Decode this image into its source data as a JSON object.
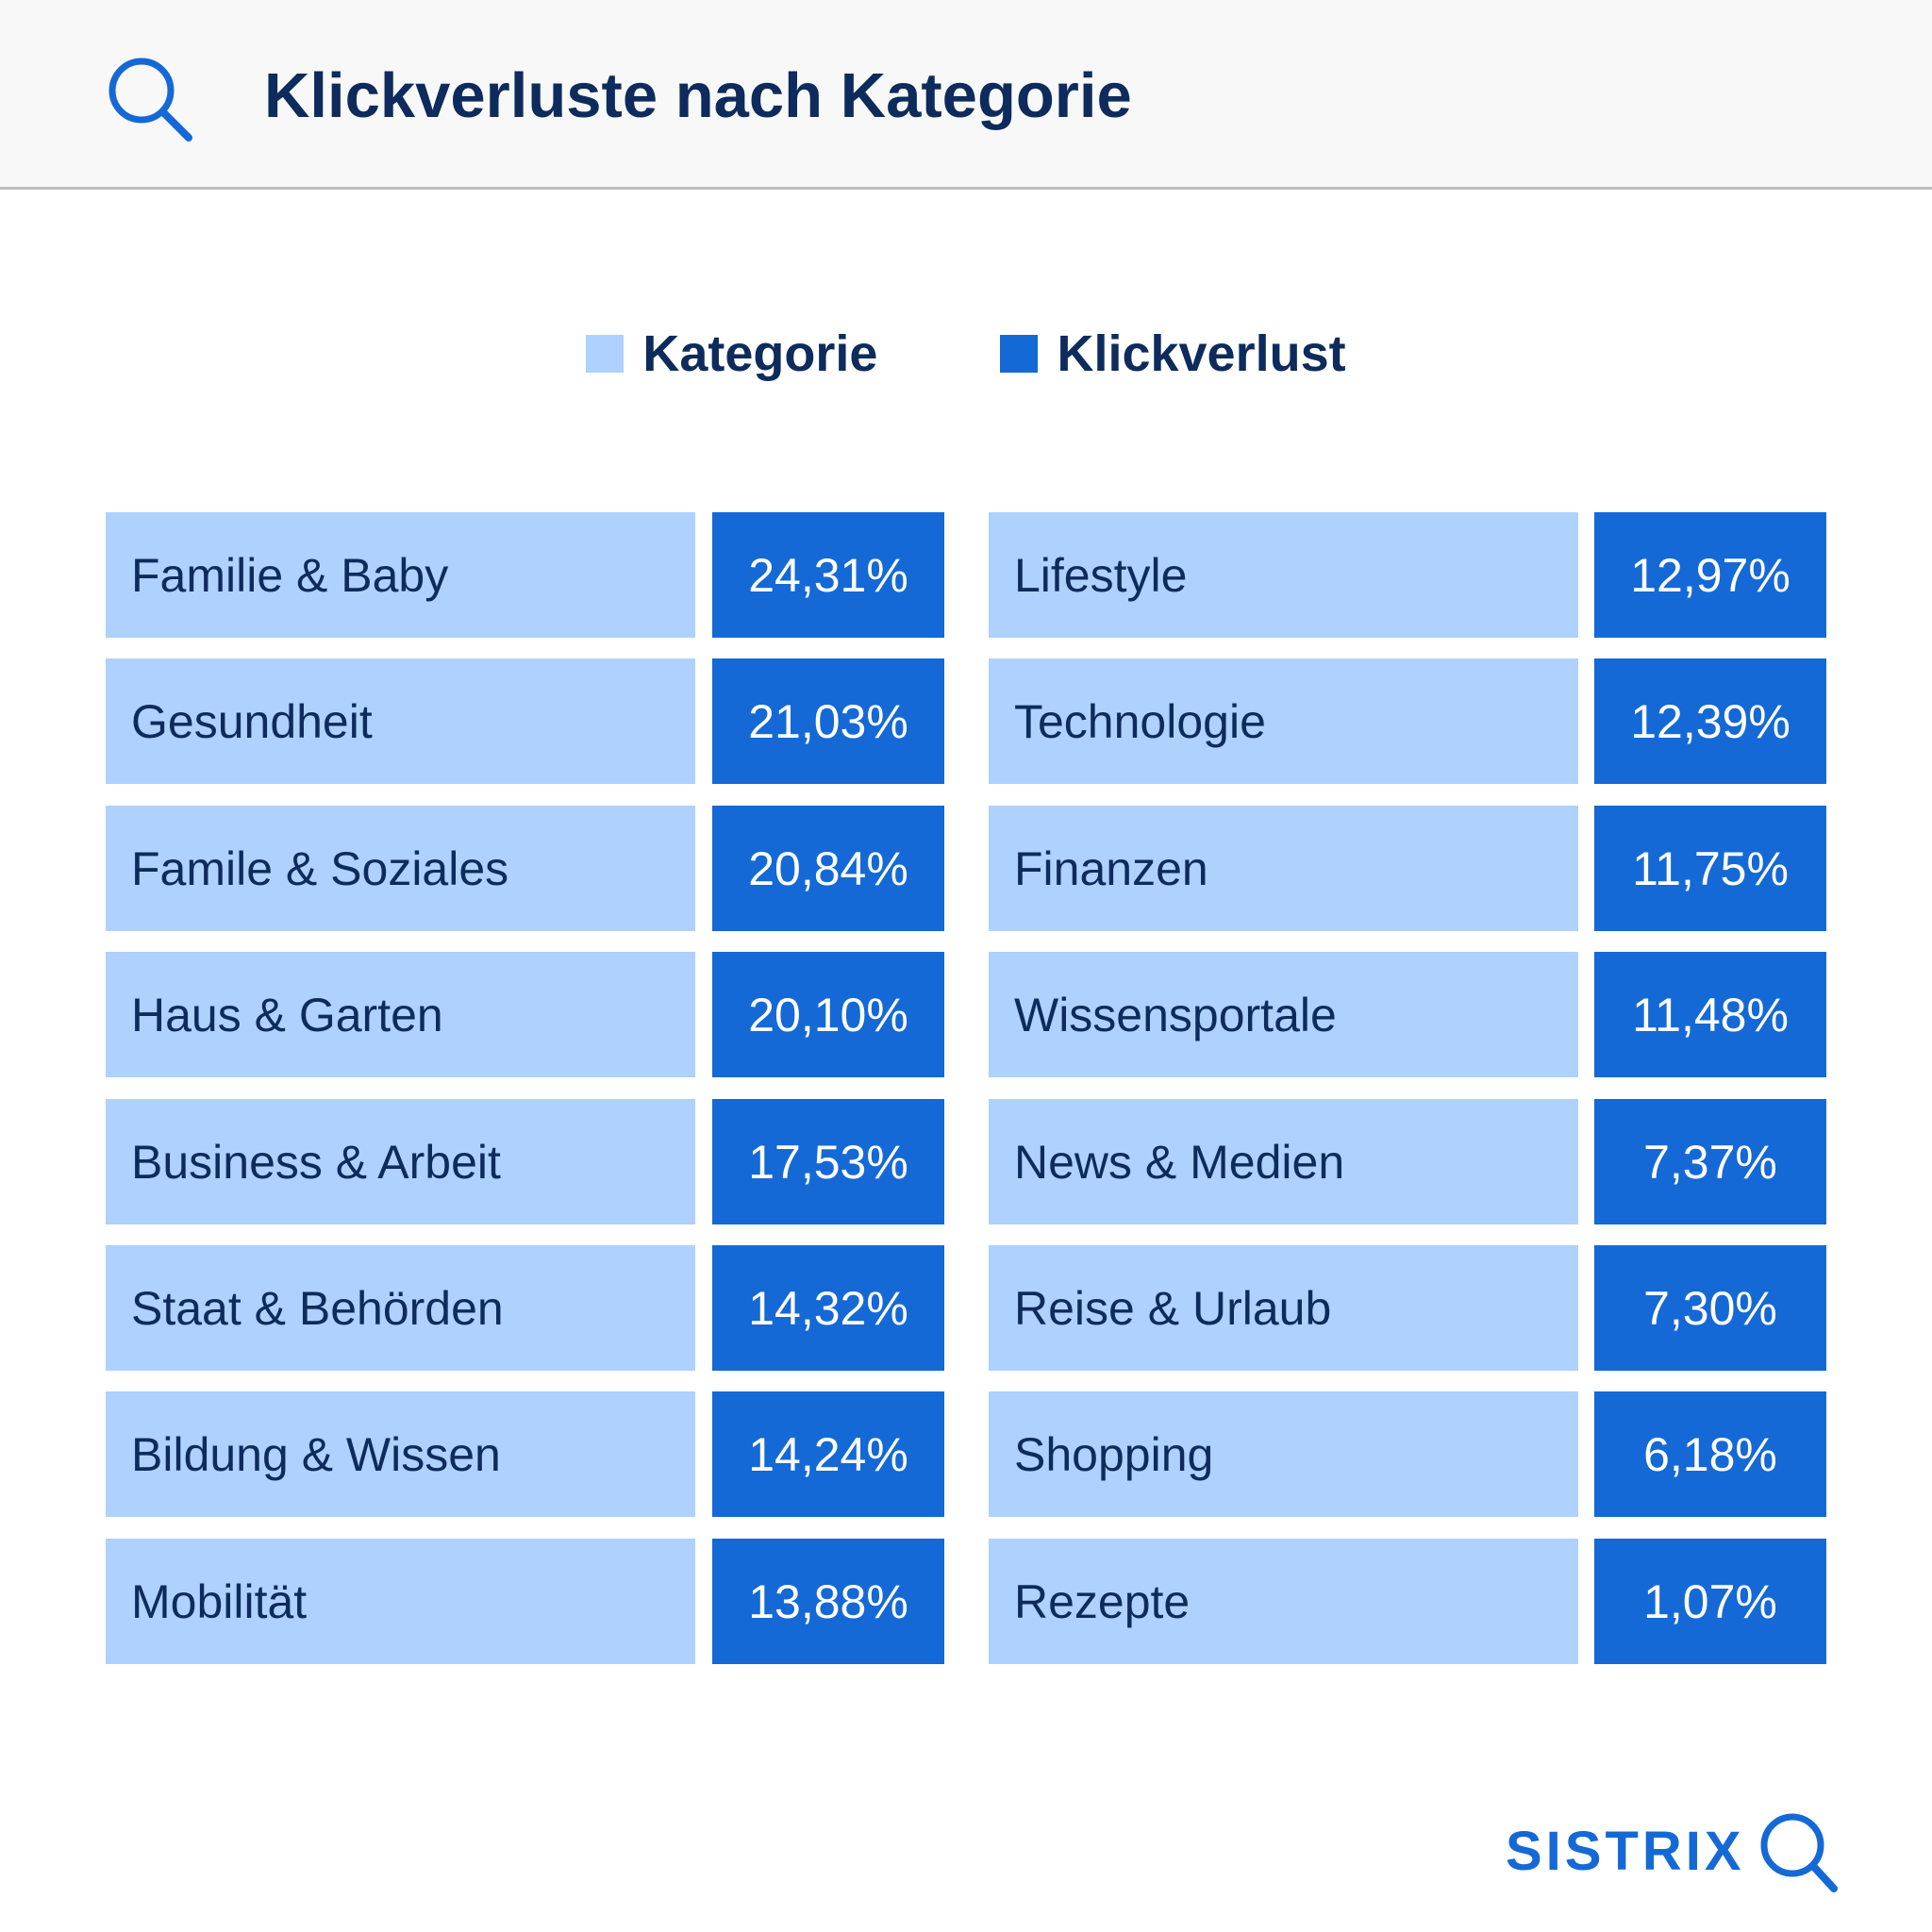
{
  "title": "Klickverluste nach Kategorie",
  "colors": {
    "category": "#afd1fd",
    "loss": "#1469d6",
    "title": "#0d2b5c",
    "brand": "#1469d6"
  },
  "brand": "SISTRIX",
  "legend": {
    "category": "Kategorie",
    "loss": "Klickverlust"
  },
  "chart_data": {
    "type": "table",
    "title": "Klickverluste nach Kategorie",
    "columns": [
      "Kategorie",
      "Klickverlust"
    ],
    "rows": [
      {
        "category": "Familie & Baby",
        "value": 24.31,
        "label": "24,31%"
      },
      {
        "category": "Gesundheit",
        "value": 21.03,
        "label": "21,03%"
      },
      {
        "category": "Famile & Soziales",
        "value": 20.84,
        "label": "20,84%"
      },
      {
        "category": "Haus & Garten",
        "value": 20.1,
        "label": "20,10%"
      },
      {
        "category": "Business & Arbeit",
        "value": 17.53,
        "label": "17,53%"
      },
      {
        "category": "Staat & Behörden",
        "value": 14.32,
        "label": "14,32%"
      },
      {
        "category": "Bildung & Wissen",
        "value": 14.24,
        "label": "14,24%"
      },
      {
        "category": "Mobilität",
        "value": 13.88,
        "label": "13,88%"
      },
      {
        "category": "Lifestyle",
        "value": 12.97,
        "label": "12,97%"
      },
      {
        "category": "Technologie",
        "value": 12.39,
        "label": "12,39%"
      },
      {
        "category": "Finanzen",
        "value": 11.75,
        "label": "11,75%"
      },
      {
        "category": "Wissensportale",
        "value": 11.48,
        "label": "11,48%"
      },
      {
        "category": "News & Medien",
        "value": 7.37,
        "label": "7,37%"
      },
      {
        "category": "Reise & Urlaub",
        "value": 7.3,
        "label": "7,30%"
      },
      {
        "category": "Shopping",
        "value": 6.18,
        "label": "6,18%"
      },
      {
        "category": "Rezepte",
        "value": 1.07,
        "label": "1,07%"
      }
    ]
  }
}
